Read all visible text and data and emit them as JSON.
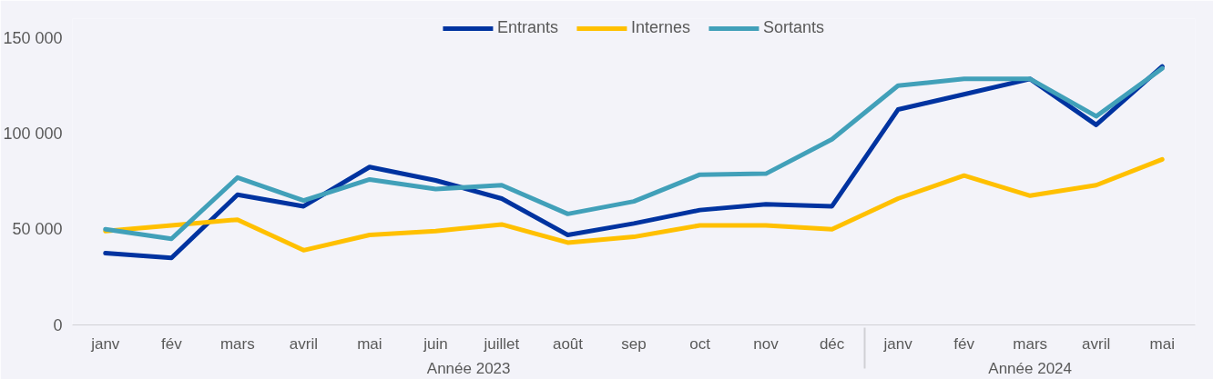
{
  "chart_data": {
    "type": "line",
    "categories": [
      "janv",
      "fév",
      "mars",
      "avril",
      "mai",
      "juin",
      "juillet",
      "août",
      "sep",
      "oct",
      "nov",
      "déc",
      "janv",
      "fév",
      "mars",
      "avril",
      "mai"
    ],
    "annotations": [
      "Année 2023",
      "Année 2024"
    ],
    "series": [
      {
        "name": "Entrants",
        "color": "#0033a0",
        "values": [
          37500,
          35000,
          68000,
          62000,
          82500,
          75500,
          66000,
          47000,
          53000,
          60000,
          63000,
          62000,
          112500,
          120500,
          128500,
          104500,
          135000
        ]
      },
      {
        "name": "Internes",
        "color": "#ffc000",
        "values": [
          49000,
          52000,
          55000,
          39000,
          47000,
          49000,
          52500,
          43000,
          46000,
          52000,
          52000,
          50000,
          66000,
          78000,
          67500,
          73000,
          86500
        ]
      },
      {
        "name": "Sortants",
        "color": "#41a0b9",
        "values": [
          50000,
          45000,
          77000,
          65000,
          76000,
          71000,
          73000,
          58000,
          64500,
          78500,
          79000,
          97000,
          125000,
          128500,
          128500,
          109000,
          134000
        ]
      }
    ],
    "ylim": [
      0,
      160000
    ],
    "yticks": [
      {
        "value": 0,
        "label": "0"
      },
      {
        "value": 50000,
        "label": "50 000"
      },
      {
        "value": 100000,
        "label": "100 000"
      },
      {
        "value": 150000,
        "label": "150 000"
      }
    ],
    "grid": false,
    "legend": "top",
    "line_style": "solid",
    "marker": "none"
  }
}
